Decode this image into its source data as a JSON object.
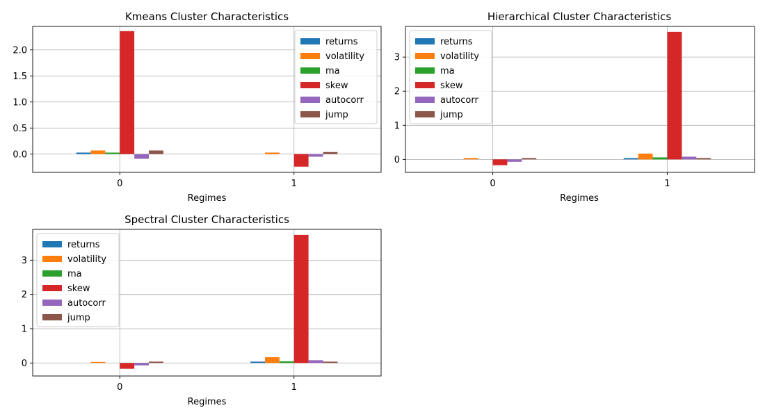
{
  "colors": {
    "returns": "#1f77b4",
    "volatility": "#ff7f0e",
    "ma": "#2ca02c",
    "skew": "#d62728",
    "autocorr": "#9467bd",
    "jump": "#8c564b",
    "grid": "#b0b0b0"
  },
  "chart_data": [
    {
      "type": "bar",
      "title": "Kmeans Cluster Characteristics",
      "xlabel": "Regimes",
      "ylabel": "",
      "categories": [
        "0",
        "1"
      ],
      "ylim": [
        -0.35,
        2.45
      ],
      "yticks": [
        0.0,
        0.5,
        1.0,
        1.5,
        2.0
      ],
      "ytick_labels": [
        "0.0",
        "0.5",
        "1.0",
        "1.5",
        "2.0"
      ],
      "grid": true,
      "legend": "upper right",
      "series": [
        {
          "name": "returns",
          "values": [
            0.03,
            0.0
          ]
        },
        {
          "name": "volatility",
          "values": [
            0.07,
            0.03
          ]
        },
        {
          "name": "ma",
          "values": [
            0.03,
            0.0
          ]
        },
        {
          "name": "skew",
          "values": [
            2.36,
            -0.24
          ]
        },
        {
          "name": "autocorr",
          "values": [
            -0.09,
            -0.05
          ]
        },
        {
          "name": "jump",
          "values": [
            0.07,
            0.04
          ]
        }
      ]
    },
    {
      "type": "bar",
      "title": "Hierarchical Cluster Characteristics",
      "xlabel": "Regimes",
      "ylabel": "",
      "categories": [
        "0",
        "1"
      ],
      "ylim": [
        -0.38,
        3.9
      ],
      "yticks": [
        0,
        1,
        2,
        3
      ],
      "ytick_labels": [
        "0",
        "1",
        "2",
        "3"
      ],
      "grid": true,
      "legend": "upper left",
      "series": [
        {
          "name": "returns",
          "values": [
            0.0,
            0.04
          ]
        },
        {
          "name": "volatility",
          "values": [
            0.04,
            0.17
          ]
        },
        {
          "name": "ma",
          "values": [
            0.0,
            0.06
          ]
        },
        {
          "name": "skew",
          "values": [
            -0.17,
            3.74
          ]
        },
        {
          "name": "autocorr",
          "values": [
            -0.07,
            0.08
          ]
        },
        {
          "name": "jump",
          "values": [
            0.04,
            0.04
          ]
        }
      ]
    },
    {
      "type": "bar",
      "title": "Spectral Cluster Characteristics",
      "xlabel": "Regimes",
      "ylabel": "",
      "categories": [
        "0",
        "1"
      ],
      "ylim": [
        -0.38,
        3.9
      ],
      "yticks": [
        0,
        1,
        2,
        3
      ],
      "ytick_labels": [
        "0",
        "1",
        "2",
        "3"
      ],
      "grid": true,
      "legend": "upper left",
      "series": [
        {
          "name": "returns",
          "values": [
            0.0,
            0.04
          ]
        },
        {
          "name": "volatility",
          "values": [
            0.03,
            0.17
          ]
        },
        {
          "name": "ma",
          "values": [
            0.0,
            0.05
          ]
        },
        {
          "name": "skew",
          "values": [
            -0.17,
            3.74
          ]
        },
        {
          "name": "autocorr",
          "values": [
            -0.07,
            0.08
          ]
        },
        {
          "name": "jump",
          "values": [
            0.04,
            0.04
          ]
        }
      ]
    }
  ]
}
